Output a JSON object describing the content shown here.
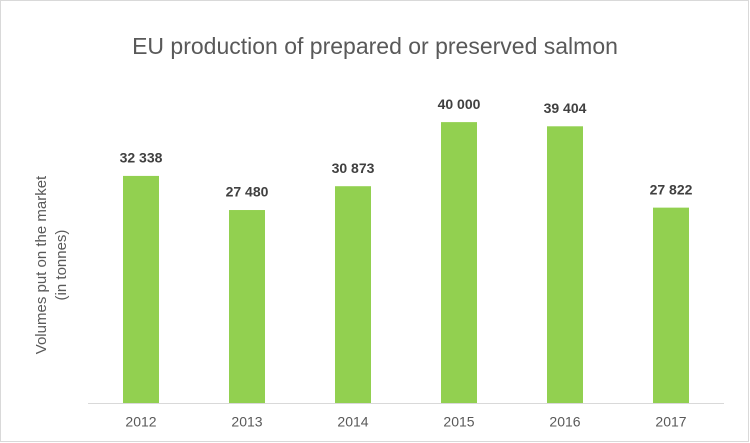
{
  "chart_data": {
    "type": "bar",
    "title": "EU production of prepared or preserved salmon",
    "y_label": [
      "Volumes put on the market",
      "(in tonnes)"
    ],
    "categories": [
      "2012",
      "2013",
      "2014",
      "2015",
      "2016",
      "2017"
    ],
    "values": [
      32338,
      27480,
      30873,
      40000,
      39404,
      27822
    ],
    "value_labels": [
      "32 338",
      "27 480",
      "30 873",
      "40 000",
      "39 404",
      "27 822"
    ],
    "color": "#92d050",
    "ylim": [
      0,
      45000
    ]
  }
}
